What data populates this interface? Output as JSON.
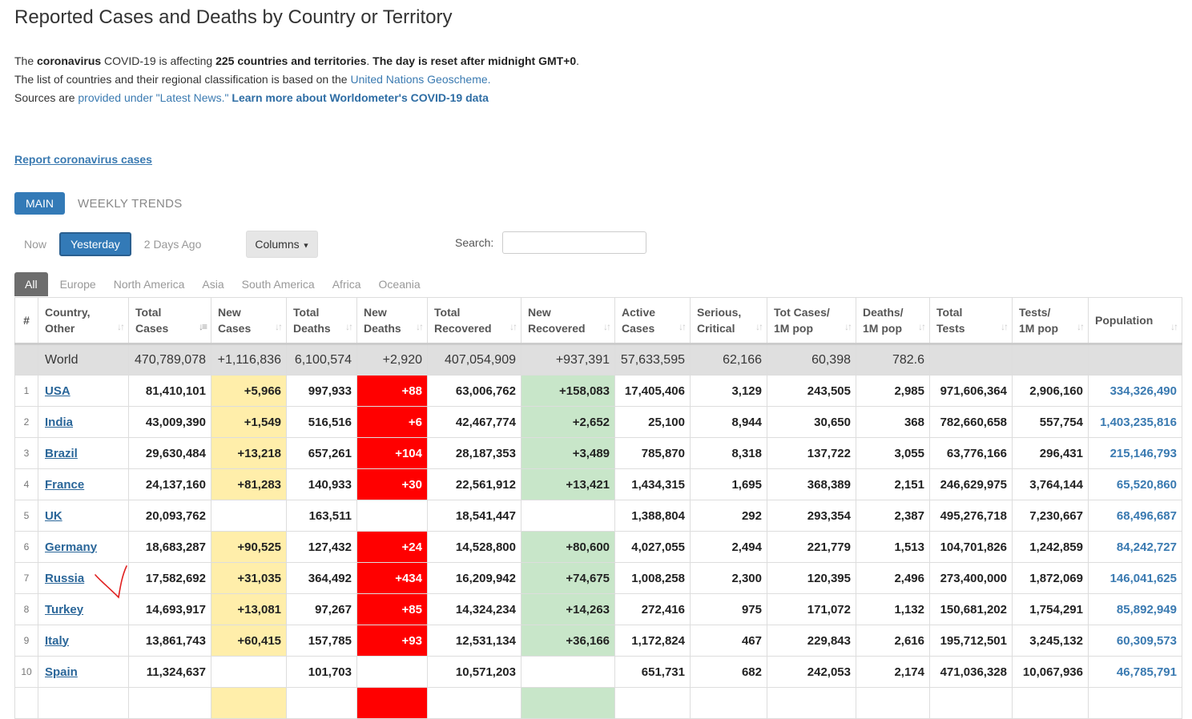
{
  "page": {
    "title": "Reported Cases and Deaths by Country or Territory",
    "intro": {
      "p1": "The ",
      "b1": "coronavirus",
      "p2": " COVID-19 is affecting ",
      "b2": "225 countries and territories",
      "p3": ". ",
      "b3": "The day is reset after midnight GMT+0",
      "p4": ". The list of countries and their regional classification is based on the ",
      "link_un": "United Nations Geoscheme.",
      "p5": "Sources are ",
      "link_sources": "provided under \"Latest News.\"",
      "link_learn": "Learn more about Worldometer's COVID-19 data"
    },
    "report_link": "Report coronavirus cases"
  },
  "tabs": {
    "main": "MAIN",
    "weekly": "WEEKLY TRENDS"
  },
  "days": {
    "now": "Now",
    "yesterday": "Yesterday",
    "two_days": "2 Days Ago",
    "columns": "Columns"
  },
  "search": {
    "label": "Search:",
    "placeholder": ""
  },
  "regions": [
    "All",
    "Europe",
    "North America",
    "Asia",
    "South America",
    "Africa",
    "Oceania"
  ],
  "table": {
    "headers": {
      "rank": "#",
      "country_1": "Country,",
      "country_2": "Other",
      "total_cases_1": "Total",
      "total_cases_2": "Cases",
      "new_cases_1": "New",
      "new_cases_2": "Cases",
      "total_deaths_1": "Total",
      "total_deaths_2": "Deaths",
      "new_deaths_1": "New",
      "new_deaths_2": "Deaths",
      "total_recovered_1": "Total",
      "total_recovered_2": "Recovered",
      "new_recovered_1": "New",
      "new_recovered_2": "Recovered",
      "active_1": "Active",
      "active_2": "Cases",
      "critical_1": "Serious,",
      "critical_2": "Critical",
      "cases_pop_1": "Tot Cases/",
      "cases_pop_2": "1M pop",
      "deaths_pop_1": "Deaths/",
      "deaths_pop_2": "1M pop",
      "tests_1": "Total",
      "tests_2": "Tests",
      "tests_pop_1": "Tests/",
      "tests_pop_2": "1M pop",
      "population": "Population"
    },
    "world": {
      "country": "World",
      "total_cases": "470,789,078",
      "new_cases": "+1,116,836",
      "total_deaths": "6,100,574",
      "new_deaths": "+2,920",
      "total_recovered": "407,054,909",
      "new_recovered": "+937,391",
      "active": "57,633,595",
      "critical": "62,166",
      "cases_pop": "60,398",
      "deaths_pop": "782.6"
    },
    "rows": [
      {
        "rank": "1",
        "country": "USA",
        "total_cases": "81,410,101",
        "new_cases": "+5,966",
        "total_deaths": "997,933",
        "new_deaths": "+88",
        "total_recovered": "63,006,762",
        "new_recovered": "+158,083",
        "active": "17,405,406",
        "critical": "3,129",
        "cases_pop": "243,505",
        "deaths_pop": "2,985",
        "tests": "971,606,364",
        "tests_pop": "2,906,160",
        "population": "334,326,490"
      },
      {
        "rank": "2",
        "country": "India",
        "total_cases": "43,009,390",
        "new_cases": "+1,549",
        "total_deaths": "516,516",
        "new_deaths": "+6",
        "total_recovered": "42,467,774",
        "new_recovered": "+2,652",
        "active": "25,100",
        "critical": "8,944",
        "cases_pop": "30,650",
        "deaths_pop": "368",
        "tests": "782,660,658",
        "tests_pop": "557,754",
        "population": "1,403,235,816"
      },
      {
        "rank": "3",
        "country": "Brazil",
        "total_cases": "29,630,484",
        "new_cases": "+13,218",
        "total_deaths": "657,261",
        "new_deaths": "+104",
        "total_recovered": "28,187,353",
        "new_recovered": "+3,489",
        "active": "785,870",
        "critical": "8,318",
        "cases_pop": "137,722",
        "deaths_pop": "3,055",
        "tests": "63,776,166",
        "tests_pop": "296,431",
        "population": "215,146,793"
      },
      {
        "rank": "4",
        "country": "France",
        "total_cases": "24,137,160",
        "new_cases": "+81,283",
        "total_deaths": "140,933",
        "new_deaths": "+30",
        "total_recovered": "22,561,912",
        "new_recovered": "+13,421",
        "active": "1,434,315",
        "critical": "1,695",
        "cases_pop": "368,389",
        "deaths_pop": "2,151",
        "tests": "246,629,975",
        "tests_pop": "3,764,144",
        "population": "65,520,860"
      },
      {
        "rank": "5",
        "country": "UK",
        "total_cases": "20,093,762",
        "new_cases": "",
        "total_deaths": "163,511",
        "new_deaths": "",
        "total_recovered": "18,541,447",
        "new_recovered": "",
        "active": "1,388,804",
        "critical": "292",
        "cases_pop": "293,354",
        "deaths_pop": "2,387",
        "tests": "495,276,718",
        "tests_pop": "7,230,667",
        "population": "68,496,687"
      },
      {
        "rank": "6",
        "country": "Germany",
        "total_cases": "18,683,287",
        "new_cases": "+90,525",
        "total_deaths": "127,432",
        "new_deaths": "+24",
        "total_recovered": "14,528,800",
        "new_recovered": "+80,600",
        "active": "4,027,055",
        "critical": "2,494",
        "cases_pop": "221,779",
        "deaths_pop": "1,513",
        "tests": "104,701,826",
        "tests_pop": "1,242,859",
        "population": "84,242,727"
      },
      {
        "rank": "7",
        "country": "Russia",
        "total_cases": "17,582,692",
        "new_cases": "+31,035",
        "total_deaths": "364,492",
        "new_deaths": "+434",
        "total_recovered": "16,209,942",
        "new_recovered": "+74,675",
        "active": "1,008,258",
        "critical": "2,300",
        "cases_pop": "120,395",
        "deaths_pop": "2,496",
        "tests": "273,400,000",
        "tests_pop": "1,872,069",
        "population": "146,041,625"
      },
      {
        "rank": "8",
        "country": "Turkey",
        "total_cases": "14,693,917",
        "new_cases": "+13,081",
        "total_deaths": "97,267",
        "new_deaths": "+85",
        "total_recovered": "14,324,234",
        "new_recovered": "+14,263",
        "active": "272,416",
        "critical": "975",
        "cases_pop": "171,072",
        "deaths_pop": "1,132",
        "tests": "150,681,202",
        "tests_pop": "1,754,291",
        "population": "85,892,949"
      },
      {
        "rank": "9",
        "country": "Italy",
        "total_cases": "13,861,743",
        "new_cases": "+60,415",
        "total_deaths": "157,785",
        "new_deaths": "+93",
        "total_recovered": "12,531,134",
        "new_recovered": "+36,166",
        "active": "1,172,824",
        "critical": "467",
        "cases_pop": "229,843",
        "deaths_pop": "2,616",
        "tests": "195,712,501",
        "tests_pop": "3,245,132",
        "population": "60,309,573"
      },
      {
        "rank": "10",
        "country": "Spain",
        "total_cases": "11,324,637",
        "new_cases": "",
        "total_deaths": "101,703",
        "new_deaths": "",
        "total_recovered": "10,571,203",
        "new_recovered": "",
        "active": "651,731",
        "critical": "682",
        "cases_pop": "242,053",
        "deaths_pop": "2,174",
        "tests": "471,036,328",
        "tests_pop": "10,067,936",
        "population": "46,785,791"
      },
      {
        "rank": "",
        "country": "",
        "total_cases": "",
        "new_cases": "",
        "total_deaths": "",
        "new_deaths": "",
        "total_recovered": "",
        "new_recovered": "",
        "active": "",
        "critical": "",
        "cases_pop": "",
        "deaths_pop": "",
        "tests": "",
        "tests_pop": "",
        "population": ""
      }
    ]
  },
  "colors": {
    "accent": "#337ab7",
    "new_cases_bg": "#ffeeaa",
    "new_deaths_bg": "#ff0000",
    "new_recovered_bg": "#c8e6c9",
    "annotation_mark": "#e02020"
  }
}
